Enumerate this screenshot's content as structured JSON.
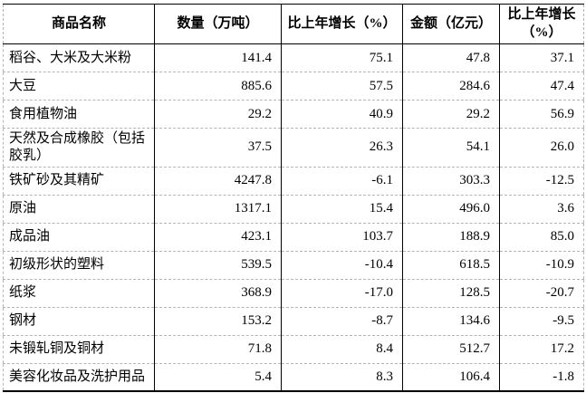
{
  "table": {
    "columns": [
      {
        "key": "name",
        "label": "商品名称"
      },
      {
        "key": "quantity",
        "label": "数量（万吨）"
      },
      {
        "key": "quantity_growth",
        "label": "比上年增长（%）"
      },
      {
        "key": "amount",
        "label": "金额（亿元）"
      },
      {
        "key": "amount_growth",
        "label": "比上年增长（%）"
      }
    ],
    "rows": [
      {
        "name": "稻谷、大米及大米粉",
        "quantity": "141.4",
        "quantity_growth": "75.1",
        "amount": "47.8",
        "amount_growth": "37.1"
      },
      {
        "name": "大豆",
        "quantity": "885.6",
        "quantity_growth": "57.5",
        "amount": "284.6",
        "amount_growth": "47.4"
      },
      {
        "name": "食用植物油",
        "quantity": "29.2",
        "quantity_growth": "40.9",
        "amount": "29.2",
        "amount_growth": "56.9"
      },
      {
        "name": "天然及合成橡胶（包括胶乳）",
        "quantity": "37.5",
        "quantity_growth": "26.3",
        "amount": "54.1",
        "amount_growth": "26.0"
      },
      {
        "name": "铁矿砂及其精矿",
        "quantity": "4247.8",
        "quantity_growth": "-6.1",
        "amount": "303.3",
        "amount_growth": "-12.5"
      },
      {
        "name": "原油",
        "quantity": "1317.1",
        "quantity_growth": "15.4",
        "amount": "496.0",
        "amount_growth": "3.6"
      },
      {
        "name": "成品油",
        "quantity": "423.1",
        "quantity_growth": "103.7",
        "amount": "188.9",
        "amount_growth": "85.0"
      },
      {
        "name": "初级形状的塑料",
        "quantity": "539.5",
        "quantity_growth": "-10.4",
        "amount": "618.5",
        "amount_growth": "-10.9"
      },
      {
        "name": "纸浆",
        "quantity": "368.9",
        "quantity_growth": "-17.0",
        "amount": "128.5",
        "amount_growth": "-20.7"
      },
      {
        "name": "钢材",
        "quantity": "153.2",
        "quantity_growth": "-8.7",
        "amount": "134.6",
        "amount_growth": "-9.5"
      },
      {
        "name": "未锻轧铜及铜材",
        "quantity": "71.8",
        "quantity_growth": "8.4",
        "amount": "512.7",
        "amount_growth": "17.2"
      },
      {
        "name": "美容化妆品及洗护用品",
        "quantity": "5.4",
        "quantity_growth": "8.3",
        "amount": "106.4",
        "amount_growth": "-1.8"
      }
    ]
  },
  "colors": {
    "border": "#000000",
    "row_divider": "#b5b5b5",
    "text": "#000000",
    "background": "#ffffff"
  }
}
